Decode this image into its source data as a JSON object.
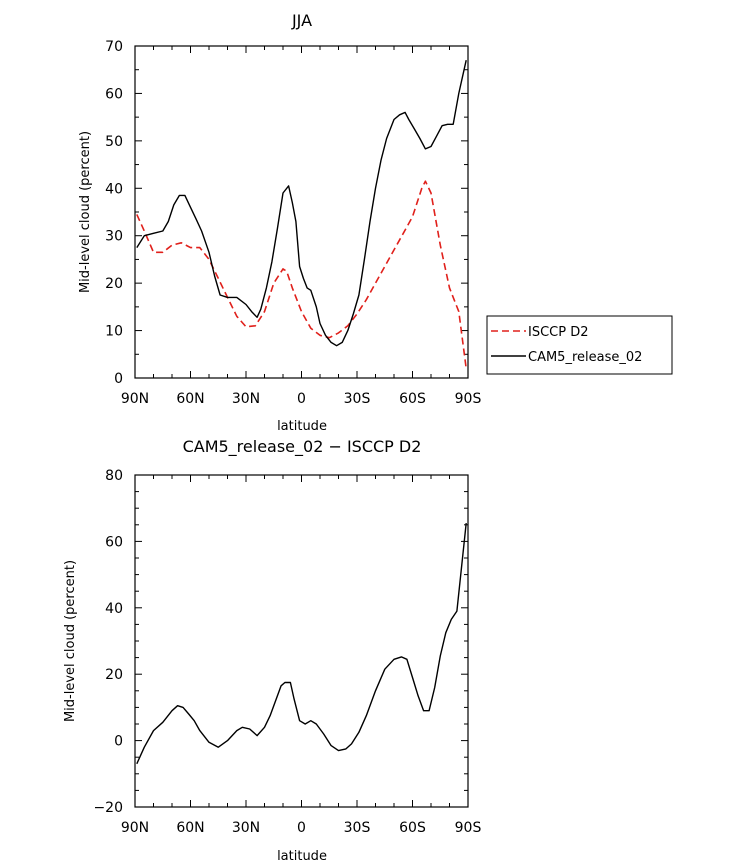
{
  "chart_data": [
    {
      "type": "line",
      "title": "JJA",
      "xlabel": "latitude",
      "ylabel": "Mid-level cloud (percent)",
      "xlim": [
        -90,
        90
      ],
      "ylim": [
        0,
        70
      ],
      "x_ticks": [
        {
          "value": -90,
          "label": "90N"
        },
        {
          "value": -60,
          "label": "60N"
        },
        {
          "value": -30,
          "label": "30N"
        },
        {
          "value": 0,
          "label": "0"
        },
        {
          "value": 30,
          "label": "30S"
        },
        {
          "value": 60,
          "label": "60S"
        },
        {
          "value": 90,
          "label": "90S"
        }
      ],
      "y_ticks": [
        0,
        10,
        20,
        30,
        40,
        50,
        60,
        70
      ],
      "grid": false,
      "legend_position": "right",
      "series": [
        {
          "name": "ISCCP D2",
          "color": "#e0201b",
          "dash": "dashed",
          "x": [
            -89,
            -85,
            -80,
            -75,
            -70,
            -65,
            -60,
            -55,
            -50,
            -45,
            -40,
            -35,
            -30,
            -25,
            -20,
            -15,
            -10,
            -8,
            -5,
            0,
            5,
            10,
            15,
            20,
            25,
            30,
            35,
            40,
            45,
            50,
            55,
            60,
            65,
            67,
            70,
            75,
            80,
            85,
            89
          ],
          "y": [
            34.5,
            31,
            26.5,
            26.5,
            28,
            28.5,
            27.5,
            27.5,
            25,
            21,
            17,
            13,
            10.8,
            11,
            14,
            20,
            23,
            22.5,
            19,
            14,
            10.5,
            9,
            8.5,
            9.5,
            11,
            13.5,
            16.5,
            20,
            23.5,
            27,
            30.5,
            34,
            40,
            41.5,
            39,
            28,
            19,
            14,
            2
          ]
        },
        {
          "name": "CAM5_release_02",
          "color": "#000000",
          "dash": "solid",
          "x": [
            -89,
            -85,
            -80,
            -75,
            -72,
            -69,
            -66,
            -63,
            -60,
            -57,
            -54,
            -50,
            -47,
            -44,
            -40,
            -35,
            -30,
            -27,
            -24,
            -22,
            -19,
            -16,
            -13,
            -10,
            -7,
            -5,
            -3,
            -1,
            1,
            3,
            5,
            8,
            10,
            13,
            16,
            19,
            22,
            25,
            28,
            31,
            34,
            37,
            40,
            43,
            46,
            50,
            53,
            56,
            58,
            61,
            64,
            67,
            70,
            73,
            76,
            79,
            82,
            85,
            89
          ],
          "y": [
            27.5,
            30,
            30.5,
            31,
            33,
            36.5,
            38.5,
            38.5,
            36,
            33.5,
            31,
            26.5,
            21.5,
            17.5,
            17,
            17,
            15.5,
            14,
            12.8,
            14.5,
            19,
            24.5,
            31.5,
            39,
            40.5,
            37,
            33,
            23.5,
            21,
            19,
            18.5,
            15,
            11.5,
            9,
            7.5,
            6.8,
            7.5,
            10,
            13.5,
            17.5,
            25,
            33,
            40,
            46,
            50.5,
            54.5,
            55.5,
            56,
            54.5,
            52.5,
            50.5,
            48.3,
            48.8,
            51,
            53.2,
            53.5,
            53.5,
            60,
            67
          ]
        }
      ]
    },
    {
      "type": "line",
      "title": "CAM5_release_02 − ISCCP D2",
      "xlabel": "latitude",
      "ylabel": "Mid-level cloud (percent)",
      "xlim": [
        -90,
        90
      ],
      "ylim": [
        -20,
        80
      ],
      "x_ticks": [
        {
          "value": -90,
          "label": "90N"
        },
        {
          "value": -60,
          "label": "60N"
        },
        {
          "value": -30,
          "label": "30N"
        },
        {
          "value": 0,
          "label": "0"
        },
        {
          "value": 30,
          "label": "30S"
        },
        {
          "value": 60,
          "label": "60S"
        },
        {
          "value": 90,
          "label": "90S"
        }
      ],
      "y_ticks": [
        -20,
        0,
        20,
        40,
        60,
        80
      ],
      "grid": false,
      "series": [
        {
          "color": "#000000",
          "dash": "solid",
          "x": [
            -89,
            -85,
            -80,
            -75,
            -70,
            -67,
            -64,
            -61,
            -58,
            -55,
            -50,
            -45,
            -40,
            -35,
            -32,
            -28,
            -24,
            -20,
            -17,
            -14,
            -11,
            -9,
            -6,
            -4,
            -1,
            2,
            5,
            8,
            12,
            16,
            20,
            24,
            27,
            31,
            35,
            40,
            45,
            50,
            54,
            57,
            60,
            63,
            66,
            69,
            72,
            75,
            78,
            81,
            84,
            89
          ],
          "y": [
            -7,
            -2,
            3,
            5.5,
            9,
            10.5,
            10,
            8,
            6,
            3,
            -0.5,
            -2,
            0,
            3,
            4,
            3.5,
            1.5,
            4,
            7.5,
            12,
            16.5,
            17.5,
            17.5,
            12.5,
            6,
            5,
            6,
            5,
            2,
            -1.5,
            -3,
            -2.5,
            -1,
            2.5,
            7.5,
            15,
            21.5,
            24.5,
            25.2,
            24.5,
            19,
            13.5,
            9,
            9,
            16,
            25.5,
            32.5,
            36.5,
            39,
            65.5
          ]
        }
      ]
    }
  ]
}
